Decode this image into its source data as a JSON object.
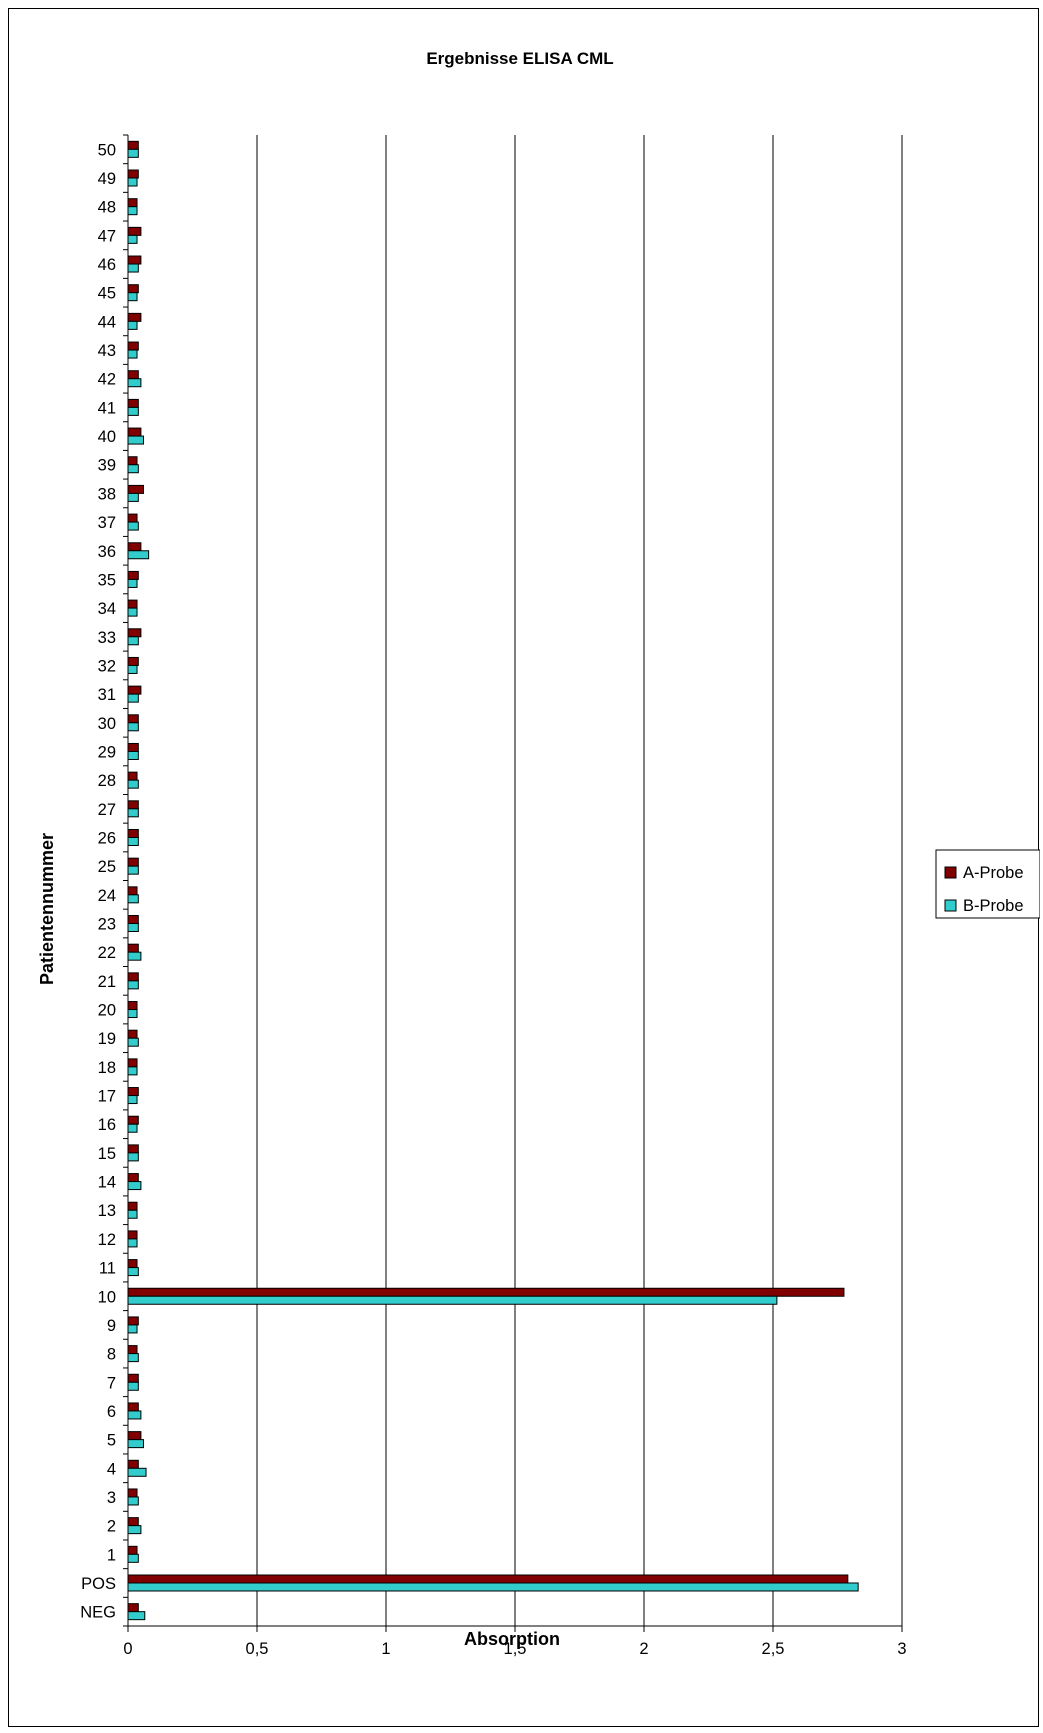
{
  "chart_data": {
    "type": "bar",
    "orientation": "horizontal",
    "title": "Ergebnisse ELISA CML",
    "xlabel": "Absorption",
    "ylabel": "Patientennummer",
    "xlim": [
      0,
      3
    ],
    "xticks": [
      "0",
      "0,5",
      "1",
      "1,5",
      "2",
      "2,5",
      "3"
    ],
    "grid": "vertical major gridlines",
    "legend_position": "right",
    "categories": [
      "NEG",
      "POS",
      "1",
      "2",
      "3",
      "4",
      "5",
      "6",
      "7",
      "8",
      "9",
      "10",
      "11",
      "12",
      "13",
      "14",
      "15",
      "16",
      "17",
      "18",
      "19",
      "20",
      "21",
      "22",
      "23",
      "24",
      "25",
      "26",
      "27",
      "28",
      "29",
      "30",
      "31",
      "32",
      "33",
      "34",
      "35",
      "36",
      "37",
      "38",
      "39",
      "40",
      "41",
      "42",
      "43",
      "44",
      "45",
      "46",
      "47",
      "48",
      "49",
      "50"
    ],
    "series": [
      {
        "name": "A-Probe",
        "color": "#800000",
        "values": [
          0.04,
          2.79,
          0.035,
          0.04,
          0.035,
          0.04,
          0.05,
          0.04,
          0.04,
          0.035,
          0.04,
          2.775,
          0.035,
          0.035,
          0.035,
          0.04,
          0.04,
          0.04,
          0.04,
          0.035,
          0.035,
          0.035,
          0.04,
          0.04,
          0.04,
          0.035,
          0.04,
          0.04,
          0.04,
          0.035,
          0.04,
          0.04,
          0.05,
          0.04,
          0.05,
          0.035,
          0.04,
          0.05,
          0.035,
          0.06,
          0.035,
          0.05,
          0.04,
          0.04,
          0.04,
          0.05,
          0.04,
          0.05,
          0.05,
          0.035,
          0.04,
          0.04
        ]
      },
      {
        "name": "B-Probe",
        "color": "#33cccc",
        "values": [
          0.065,
          2.83,
          0.04,
          0.05,
          0.04,
          0.07,
          0.06,
          0.05,
          0.04,
          0.04,
          0.035,
          2.515,
          0.04,
          0.035,
          0.035,
          0.05,
          0.04,
          0.035,
          0.035,
          0.035,
          0.04,
          0.035,
          0.04,
          0.05,
          0.04,
          0.04,
          0.04,
          0.04,
          0.04,
          0.04,
          0.04,
          0.04,
          0.04,
          0.035,
          0.04,
          0.035,
          0.035,
          0.08,
          0.04,
          0.04,
          0.04,
          0.06,
          0.04,
          0.05,
          0.035,
          0.035,
          0.035,
          0.04,
          0.035,
          0.035,
          0.035,
          0.04
        ]
      }
    ]
  }
}
